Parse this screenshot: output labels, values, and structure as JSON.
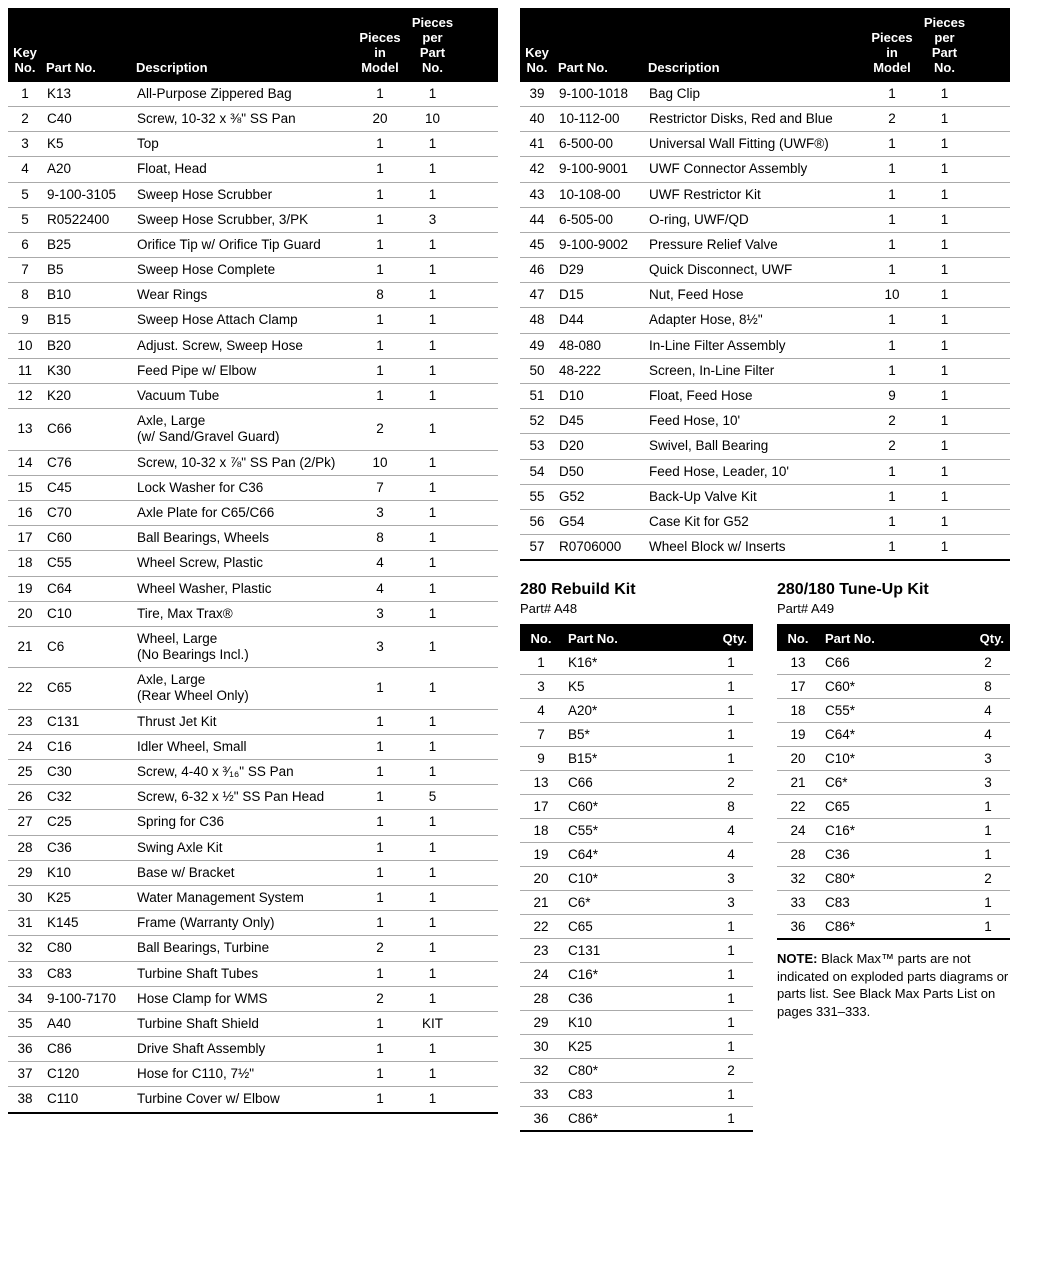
{
  "main_headers": {
    "key": "Key\nNo.",
    "partno": "Part No.",
    "desc": "Description",
    "pim": "Pieces\nin\nModel",
    "ppp": "Pieces\nper\nPart No."
  },
  "left_rows": [
    {
      "k": "1",
      "p": "K13",
      "d": "All-Purpose Zippered Bag",
      "m": "1",
      "n": "1"
    },
    {
      "k": "2",
      "p": "C40",
      "d": "Screw, 10-32 x ⅜\" SS Pan",
      "m": "20",
      "n": "10"
    },
    {
      "k": "3",
      "p": "K5",
      "d": "Top",
      "m": "1",
      "n": "1"
    },
    {
      "k": "4",
      "p": "A20",
      "d": "Float, Head",
      "m": "1",
      "n": "1"
    },
    {
      "k": "5",
      "p": "9-100-3105",
      "d": "Sweep Hose Scrubber",
      "m": "1",
      "n": "1"
    },
    {
      "k": "5",
      "p": "R0522400",
      "d": "Sweep Hose Scrubber, 3/PK",
      "m": "1",
      "n": "3"
    },
    {
      "k": "6",
      "p": "B25",
      "d": "Orifice Tip w/ Orifice Tip Guard",
      "m": "1",
      "n": "1"
    },
    {
      "k": "7",
      "p": "B5",
      "d": "Sweep Hose Complete",
      "m": "1",
      "n": "1"
    },
    {
      "k": "8",
      "p": "B10",
      "d": "Wear Rings",
      "m": "8",
      "n": "1"
    },
    {
      "k": "9",
      "p": "B15",
      "d": "Sweep Hose Attach Clamp",
      "m": "1",
      "n": "1"
    },
    {
      "k": "10",
      "p": "B20",
      "d": "Adjust. Screw, Sweep Hose",
      "m": "1",
      "n": "1"
    },
    {
      "k": "11",
      "p": "K30",
      "d": "Feed Pipe w/ Elbow",
      "m": "1",
      "n": "1"
    },
    {
      "k": "12",
      "p": "K20",
      "d": "Vacuum Tube",
      "m": "1",
      "n": "1"
    },
    {
      "k": "13",
      "p": "C66",
      "d": "Axle, Large\n(w/ Sand/Gravel Guard)",
      "m": "2",
      "n": "1"
    },
    {
      "k": "14",
      "p": "C76",
      "d": "Screw, 10-32 x ⅞\" SS Pan (2/Pk)",
      "m": "10",
      "n": "1"
    },
    {
      "k": "15",
      "p": "C45",
      "d": "Lock Washer for C36",
      "m": "7",
      "n": "1"
    },
    {
      "k": "16",
      "p": "C70",
      "d": "Axle Plate for C65/C66",
      "m": "3",
      "n": "1"
    },
    {
      "k": "17",
      "p": "C60",
      "d": "Ball Bearings, Wheels",
      "m": "8",
      "n": "1"
    },
    {
      "k": "18",
      "p": "C55",
      "d": "Wheel Screw, Plastic",
      "m": "4",
      "n": "1"
    },
    {
      "k": "19",
      "p": "C64",
      "d": "Wheel Washer, Plastic",
      "m": "4",
      "n": "1"
    },
    {
      "k": "20",
      "p": "C10",
      "d": "Tire, Max Trax®",
      "m": "3",
      "n": "1"
    },
    {
      "k": "21",
      "p": "C6",
      "d": "Wheel, Large\n(No Bearings Incl.)",
      "m": "3",
      "n": "1"
    },
    {
      "k": "22",
      "p": "C65",
      "d": "Axle, Large\n(Rear Wheel Only)",
      "m": "1",
      "n": "1"
    },
    {
      "k": "23",
      "p": "C131",
      "d": "Thrust Jet Kit",
      "m": "1",
      "n": "1"
    },
    {
      "k": "24",
      "p": "C16",
      "d": "Idler Wheel, Small",
      "m": "1",
      "n": "1"
    },
    {
      "k": "25",
      "p": "C30",
      "d": "Screw, 4-40 x ³⁄₁₆\" SS Pan",
      "m": "1",
      "n": "1"
    },
    {
      "k": "26",
      "p": "C32",
      "d": "Screw, 6-32 x ½\" SS Pan Head",
      "m": "1",
      "n": "5"
    },
    {
      "k": "27",
      "p": "C25",
      "d": "Spring for C36",
      "m": "1",
      "n": "1"
    },
    {
      "k": "28",
      "p": "C36",
      "d": "Swing Axle Kit",
      "m": "1",
      "n": "1"
    },
    {
      "k": "29",
      "p": "K10",
      "d": "Base w/ Bracket",
      "m": "1",
      "n": "1"
    },
    {
      "k": "30",
      "p": "K25",
      "d": "Water Management System",
      "m": "1",
      "n": "1"
    },
    {
      "k": "31",
      "p": "K145",
      "d": "Frame (Warranty Only)",
      "m": "1",
      "n": "1"
    },
    {
      "k": "32",
      "p": "C80",
      "d": "Ball Bearings, Turbine",
      "m": "2",
      "n": "1"
    },
    {
      "k": "33",
      "p": "C83",
      "d": "Turbine Shaft Tubes",
      "m": "1",
      "n": "1"
    },
    {
      "k": "34",
      "p": "9-100-7170",
      "d": "Hose Clamp for WMS",
      "m": "2",
      "n": "1"
    },
    {
      "k": "35",
      "p": "A40",
      "d": "Turbine Shaft Shield",
      "m": "1",
      "n": "KIT"
    },
    {
      "k": "36",
      "p": "C86",
      "d": "Drive Shaft Assembly",
      "m": "1",
      "n": "1"
    },
    {
      "k": "37",
      "p": "C120",
      "d": "Hose for C110, 7½\"",
      "m": "1",
      "n": "1"
    },
    {
      "k": "38",
      "p": "C110",
      "d": "Turbine Cover w/ Elbow",
      "m": "1",
      "n": "1"
    }
  ],
  "right_rows": [
    {
      "k": "39",
      "p": "9-100-1018",
      "d": "Bag Clip",
      "m": "1",
      "n": "1"
    },
    {
      "k": "40",
      "p": "10-112-00",
      "d": "Restrictor Disks, Red and Blue",
      "m": "2",
      "n": "1"
    },
    {
      "k": "41",
      "p": "6-500-00",
      "d": "Universal Wall Fitting (UWF®)",
      "m": "1",
      "n": "1"
    },
    {
      "k": "42",
      "p": "9-100-9001",
      "d": "UWF Connector Assembly",
      "m": "1",
      "n": "1"
    },
    {
      "k": "43",
      "p": "10-108-00",
      "d": "UWF Restrictor Kit",
      "m": "1",
      "n": "1"
    },
    {
      "k": "44",
      "p": "6-505-00",
      "d": "O-ring, UWF/QD",
      "m": "1",
      "n": "1"
    },
    {
      "k": "45",
      "p": "9-100-9002",
      "d": "Pressure Relief Valve",
      "m": "1",
      "n": "1"
    },
    {
      "k": "46",
      "p": "D29",
      "d": "Quick Disconnect, UWF",
      "m": "1",
      "n": "1"
    },
    {
      "k": "47",
      "p": "D15",
      "d": "Nut, Feed Hose",
      "m": "10",
      "n": "1"
    },
    {
      "k": "48",
      "p": "D44",
      "d": "Adapter Hose, 8½\"",
      "m": "1",
      "n": "1"
    },
    {
      "k": "49",
      "p": "48-080",
      "d": "In-Line Filter Assembly",
      "m": "1",
      "n": "1"
    },
    {
      "k": "50",
      "p": "48-222",
      "d": "Screen, In-Line Filter",
      "m": "1",
      "n": "1"
    },
    {
      "k": "51",
      "p": "D10",
      "d": "Float, Feed Hose",
      "m": "9",
      "n": "1"
    },
    {
      "k": "52",
      "p": "D45",
      "d": "Feed Hose, 10'",
      "m": "2",
      "n": "1"
    },
    {
      "k": "53",
      "p": "D20",
      "d": "Swivel, Ball Bearing",
      "m": "2",
      "n": "1"
    },
    {
      "k": "54",
      "p": "D50",
      "d": "Feed Hose, Leader, 10'",
      "m": "1",
      "n": "1"
    },
    {
      "k": "55",
      "p": "G52",
      "d": "Back-Up Valve Kit",
      "m": "1",
      "n": "1"
    },
    {
      "k": "56",
      "p": "G54",
      "d": "Case Kit for G52",
      "m": "1",
      "n": "1"
    },
    {
      "k": "57",
      "p": "R0706000",
      "d": "Wheel Block w/ Inserts",
      "m": "1",
      "n": "1"
    }
  ],
  "kit1": {
    "title": "280 Rebuild Kit",
    "sub": "Part# A48",
    "headers": {
      "no": "No.",
      "pn": "Part No.",
      "qty": "Qty."
    },
    "rows": [
      {
        "no": "1",
        "pn": "K16*",
        "q": "1"
      },
      {
        "no": "3",
        "pn": "K5",
        "q": "1"
      },
      {
        "no": "4",
        "pn": "A20*",
        "q": "1"
      },
      {
        "no": "7",
        "pn": "B5*",
        "q": "1"
      },
      {
        "no": "9",
        "pn": "B15*",
        "q": "1"
      },
      {
        "no": "13",
        "pn": "C66",
        "q": "2"
      },
      {
        "no": "17",
        "pn": "C60*",
        "q": "8"
      },
      {
        "no": "18",
        "pn": "C55*",
        "q": "4"
      },
      {
        "no": "19",
        "pn": "C64*",
        "q": "4"
      },
      {
        "no": "20",
        "pn": "C10*",
        "q": "3"
      },
      {
        "no": "21",
        "pn": "C6*",
        "q": "3"
      },
      {
        "no": "22",
        "pn": "C65",
        "q": "1"
      },
      {
        "no": "23",
        "pn": "C131",
        "q": "1"
      },
      {
        "no": "24",
        "pn": "C16*",
        "q": "1"
      },
      {
        "no": "28",
        "pn": "C36",
        "q": "1"
      },
      {
        "no": "29",
        "pn": "K10",
        "q": "1"
      },
      {
        "no": "30",
        "pn": "K25",
        "q": "1"
      },
      {
        "no": "32",
        "pn": "C80*",
        "q": "2"
      },
      {
        "no": "33",
        "pn": "C83",
        "q": "1"
      },
      {
        "no": "36",
        "pn": "C86*",
        "q": "1"
      }
    ]
  },
  "kit2": {
    "title": "280/180 Tune-Up Kit",
    "sub": "Part# A49",
    "headers": {
      "no": "No.",
      "pn": "Part No.",
      "qty": "Qty."
    },
    "rows": [
      {
        "no": "13",
        "pn": "C66",
        "q": "2"
      },
      {
        "no": "17",
        "pn": "C60*",
        "q": "8"
      },
      {
        "no": "18",
        "pn": "C55*",
        "q": "4"
      },
      {
        "no": "19",
        "pn": "C64*",
        "q": "4"
      },
      {
        "no": "20",
        "pn": "C10*",
        "q": "3"
      },
      {
        "no": "21",
        "pn": "C6*",
        "q": "3"
      },
      {
        "no": "22",
        "pn": "C65",
        "q": "1"
      },
      {
        "no": "24",
        "pn": "C16*",
        "q": "1"
      },
      {
        "no": "28",
        "pn": "C36",
        "q": "1"
      },
      {
        "no": "32",
        "pn": "C80*",
        "q": "2"
      },
      {
        "no": "33",
        "pn": "C83",
        "q": "1"
      },
      {
        "no": "36",
        "pn": "C86*",
        "q": "1"
      }
    ]
  },
  "note_label": "NOTE:",
  "note_text": " Black Max™ parts are not indicated on exploded parts diagrams or parts list. See Black Max Parts List on pages 331–333."
}
